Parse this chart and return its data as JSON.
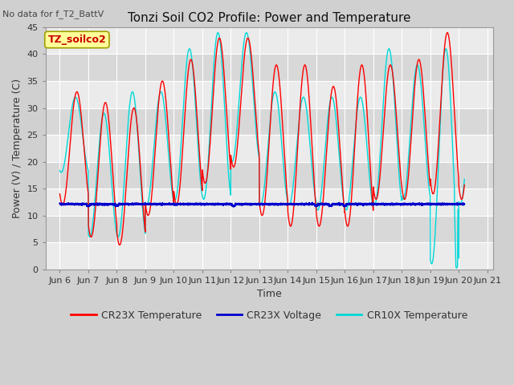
{
  "title": "Tonzi Soil CO2 Profile: Power and Temperature",
  "no_data_text": "No data for f_T2_BattV",
  "xlabel": "Time",
  "ylabel": "Power (V) / Temperature (C)",
  "ylim": [
    0,
    45
  ],
  "yticks": [
    0,
    5,
    10,
    15,
    20,
    25,
    30,
    35,
    40,
    45
  ],
  "xlim_days": [
    5.5,
    21.2
  ],
  "xtick_labels": [
    "Jun 6",
    "Jun 7",
    "Jun 8",
    "Jun 9",
    "Jun 10",
    "Jun 11",
    "Jun 12",
    "Jun 13",
    "Jun 14",
    "Jun 15",
    "Jun 16",
    "Jun 17",
    "Jun 18",
    "Jun 19",
    "Jun 20",
    "Jun 21"
  ],
  "xtick_positions": [
    6,
    7,
    8,
    9,
    10,
    11,
    12,
    13,
    14,
    15,
    16,
    17,
    18,
    19,
    20,
    21
  ],
  "fig_bg": "#d0d0d0",
  "plot_bg_light": "#ebebeb",
  "plot_bg_dark": "#d8d8d8",
  "grid_color": "#ffffff",
  "legend_entries": [
    "CR23X Temperature",
    "CR23X Voltage",
    "CR10X Temperature"
  ],
  "cr23x_color": "#ff0000",
  "voltage_color": "#0000cc",
  "cr10x_color": "#00d8d8",
  "box_label": "TZ_soilco2",
  "box_bg": "#ffff99",
  "box_border": "#a0a000",
  "cr23x_voltage": 12.1,
  "title_fontsize": 11,
  "label_fontsize": 9,
  "tick_fontsize": 8,
  "legend_fontsize": 9
}
